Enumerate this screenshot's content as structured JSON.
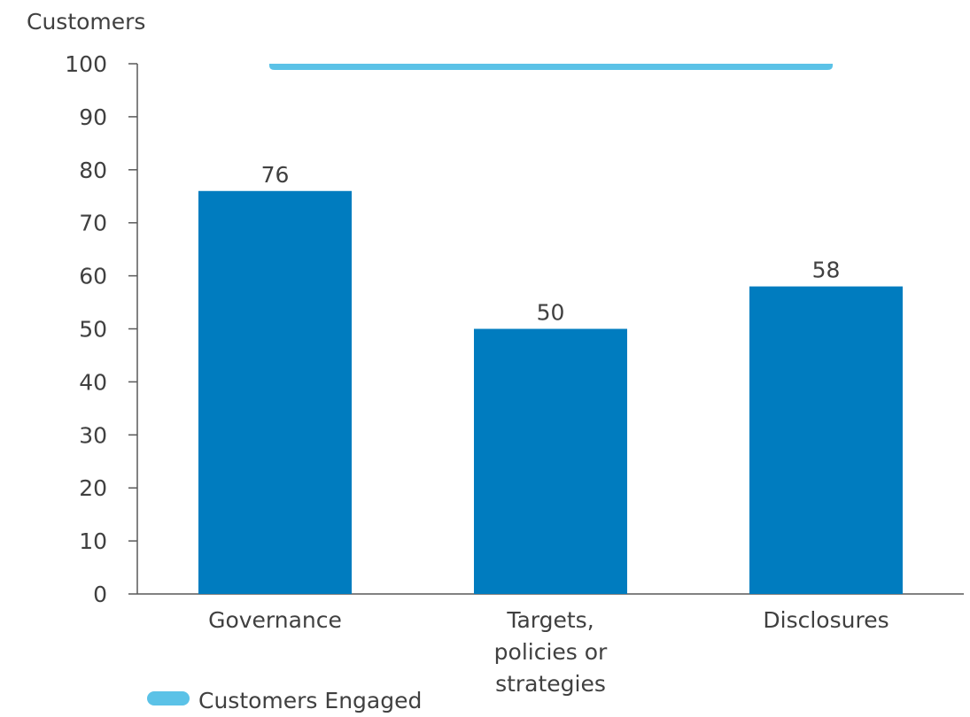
{
  "chart_data": {
    "type": "bar",
    "ylabel": "Customers",
    "ylim": [
      0,
      100
    ],
    "yticks": [
      0,
      10,
      20,
      30,
      40,
      50,
      60,
      70,
      80,
      90,
      100
    ],
    "categories": [
      [
        "Governance"
      ],
      [
        "Targets,",
        "policies or",
        "strategies"
      ],
      [
        "Disclosures"
      ]
    ],
    "values": [
      76,
      50,
      58
    ],
    "reference_line": {
      "name": "Customers Engaged",
      "value": 100
    },
    "legend": {
      "label": "Customers Engaged",
      "position": "bottom-left"
    },
    "colors": {
      "bars": "#007cbf",
      "reference": "#5bc2e7",
      "axis": "#595959",
      "text": "#404040"
    }
  }
}
